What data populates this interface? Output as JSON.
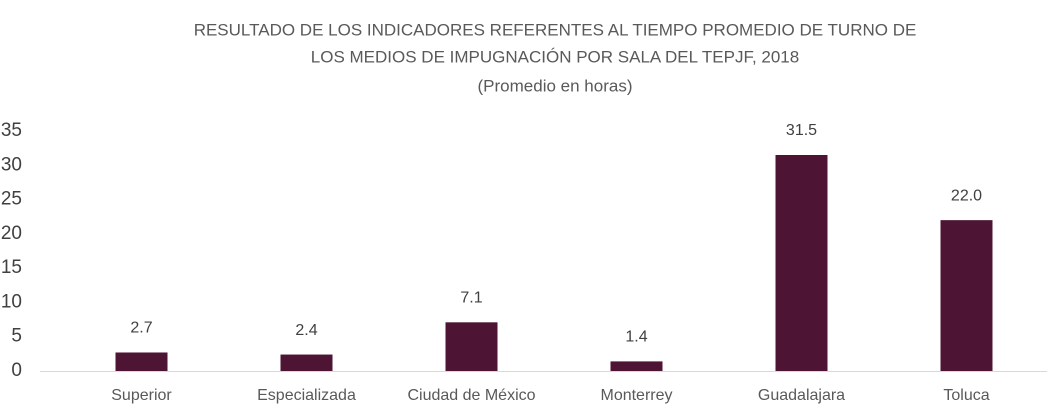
{
  "chart_data": {
    "type": "bar",
    "title": [
      "RESULTADO DE LOS INDICADORES REFERENTES AL TIEMPO PROMEDIO DE TURNO DE",
      "LOS MEDIOS DE IMPUGNACIÓN POR SALA DEL TEPJF, 2018"
    ],
    "subtitle": "(Promedio en horas)",
    "categories": [
      "Superior",
      "Especializada",
      "Ciudad de México",
      "Monterrey",
      "Guadalajara",
      "Toluca"
    ],
    "values": [
      2.7,
      2.4,
      7.1,
      1.4,
      31.5,
      22
    ],
    "value_labels": [
      "2.7",
      "2.4",
      "7.1",
      "1.4",
      "31.5",
      "22.0"
    ],
    "color": "#4d1433",
    "ylim": [
      0,
      35
    ],
    "yticks": [
      0,
      5,
      10,
      15,
      20,
      25,
      30,
      35
    ],
    "grid": false
  }
}
